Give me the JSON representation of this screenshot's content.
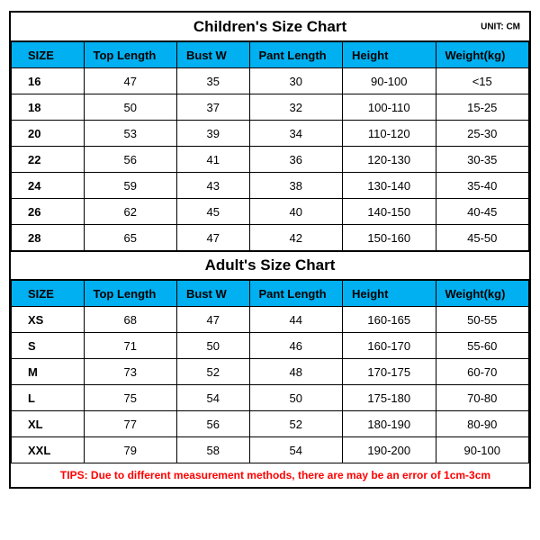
{
  "unit_label": "UNIT: CM",
  "tips": "TIPS: Due to different measurement methods, there are may be an error of 1cm-3cm",
  "header_bg": "#00b0f0",
  "children": {
    "title": "Children's Size Chart",
    "columns": [
      "SIZE",
      "Top Length",
      "Bust W",
      "Pant Length",
      "Height",
      "Weight(kg)"
    ],
    "rows": [
      [
        "16",
        "47",
        "35",
        "30",
        "90-100",
        "<15"
      ],
      [
        "18",
        "50",
        "37",
        "32",
        "100-110",
        "15-25"
      ],
      [
        "20",
        "53",
        "39",
        "34",
        "110-120",
        "25-30"
      ],
      [
        "22",
        "56",
        "41",
        "36",
        "120-130",
        "30-35"
      ],
      [
        "24",
        "59",
        "43",
        "38",
        "130-140",
        "35-40"
      ],
      [
        "26",
        "62",
        "45",
        "40",
        "140-150",
        "40-45"
      ],
      [
        "28",
        "65",
        "47",
        "42",
        "150-160",
        "45-50"
      ]
    ]
  },
  "adult": {
    "title": "Adult's Size Chart",
    "columns": [
      "SIZE",
      "Top Length",
      "Bust W",
      "Pant Length",
      "Height",
      "Weight(kg)"
    ],
    "rows": [
      [
        "XS",
        "68",
        "47",
        "44",
        "160-165",
        "50-55"
      ],
      [
        "S",
        "71",
        "50",
        "46",
        "160-170",
        "55-60"
      ],
      [
        "M",
        "73",
        "52",
        "48",
        "170-175",
        "60-70"
      ],
      [
        "L",
        "75",
        "54",
        "50",
        "175-180",
        "70-80"
      ],
      [
        "XL",
        "77",
        "56",
        "52",
        "180-190",
        "80-90"
      ],
      [
        "XXL",
        "79",
        "58",
        "54",
        "190-200",
        "90-100"
      ]
    ]
  }
}
